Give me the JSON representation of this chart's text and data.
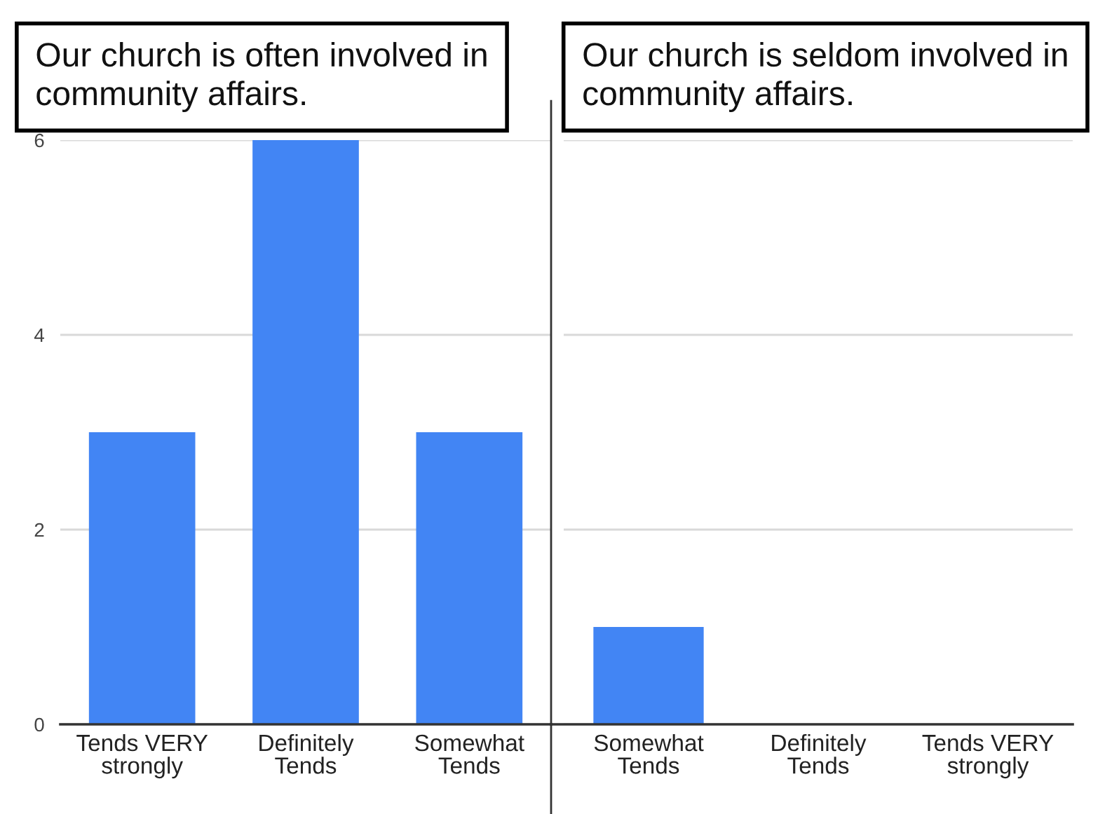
{
  "chart_data": [
    {
      "type": "bar",
      "title": "Our church is often involved in\ncommunity affairs.",
      "categories": [
        "Tends VERY\nstrongly",
        "Definitely\nTends",
        "Somewhat\nTends"
      ],
      "values": [
        3,
        6,
        3
      ],
      "color": "#4285f4",
      "ylim": [
        0,
        6
      ],
      "yticks": [
        0,
        2,
        4,
        6
      ],
      "grid": "y"
    },
    {
      "type": "bar",
      "title": "Our church is seldom involved in\ncommunity affairs.",
      "categories": [
        "Somewhat\nTends",
        "Definitely\nTends",
        "Tends VERY\nstrongly"
      ],
      "values": [
        1,
        0,
        0
      ],
      "color": "#4285f4",
      "ylim": [
        0,
        6
      ],
      "yticks": [
        0,
        2,
        4,
        6
      ],
      "grid": "y",
      "tick_labels": "x"
    }
  ]
}
